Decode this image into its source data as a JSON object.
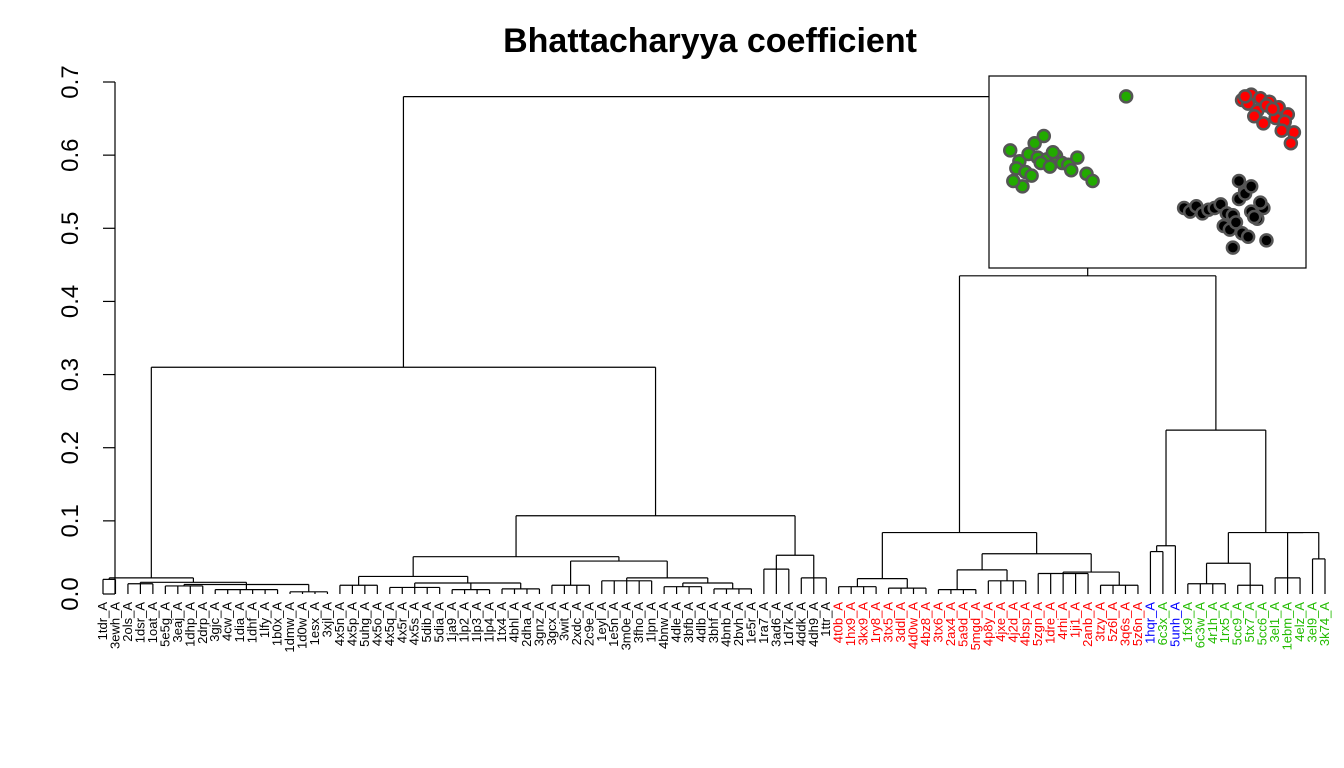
{
  "chart_data": {
    "type": "dendrogram",
    "title": "Bhattacharyya coefficient",
    "xlabel": "",
    "ylabel": "",
    "ylim": [
      0,
      0.7
    ],
    "y_ticks": [
      "0.0",
      "0.1",
      "0.2",
      "0.3",
      "0.4",
      "0.5",
      "0.6",
      "0.7"
    ],
    "y_tick_values": [
      0,
      0.1,
      0.2,
      0.3,
      0.4,
      0.5,
      0.6,
      0.7
    ],
    "grid": false,
    "colors": {
      "group_black": "#000000",
      "group_red": "#ff0000",
      "group_blue": "#0000ff",
      "group_green": "#22bb00",
      "inset_green": "#22aa00",
      "inset_red": "#ff0000",
      "inset_black": "#000000",
      "inset_outline": "#555555"
    },
    "leaves": [
      {
        "label": "1tdr_A",
        "group": "black"
      },
      {
        "label": "3ewh_A",
        "group": "black"
      },
      {
        "label": "2ols_A",
        "group": "black"
      },
      {
        "label": "1dsr_A",
        "group": "black"
      },
      {
        "label": "1oat_A",
        "group": "black"
      },
      {
        "label": "5e5g_A",
        "group": "black"
      },
      {
        "label": "3eaj_A",
        "group": "black"
      },
      {
        "label": "1dhp_A",
        "group": "black"
      },
      {
        "label": "2drp_A",
        "group": "black"
      },
      {
        "label": "3gjc_A",
        "group": "black"
      },
      {
        "label": "4cw_A",
        "group": "black"
      },
      {
        "label": "1dia_A",
        "group": "black"
      },
      {
        "label": "1dhf_A",
        "group": "black"
      },
      {
        "label": "1lfy_A",
        "group": "black"
      },
      {
        "label": "1b0x_A",
        "group": "black"
      },
      {
        "label": "1dmw_A",
        "group": "black"
      },
      {
        "label": "1d0w_A",
        "group": "black"
      },
      {
        "label": "1esx_A",
        "group": "black"
      },
      {
        "label": "3xjl_A",
        "group": "black"
      },
      {
        "label": "4x5n_A",
        "group": "black"
      },
      {
        "label": "4x5p_A",
        "group": "black"
      },
      {
        "label": "5uhg_A",
        "group": "black"
      },
      {
        "label": "4x5o_A",
        "group": "black"
      },
      {
        "label": "4x5q_A",
        "group": "black"
      },
      {
        "label": "4x5r_A",
        "group": "black"
      },
      {
        "label": "4x5s_A",
        "group": "black"
      },
      {
        "label": "5dib_A",
        "group": "black"
      },
      {
        "label": "5dia_A",
        "group": "black"
      },
      {
        "label": "1ja9_A",
        "group": "black"
      },
      {
        "label": "1lp2_A",
        "group": "black"
      },
      {
        "label": "1lp3_A",
        "group": "black"
      },
      {
        "label": "1lp4_A",
        "group": "black"
      },
      {
        "label": "1tx4_A",
        "group": "black"
      },
      {
        "label": "4bhl_A",
        "group": "black"
      },
      {
        "label": "2dha_A",
        "group": "black"
      },
      {
        "label": "3gnz_A",
        "group": "black"
      },
      {
        "label": "3gcx_A",
        "group": "black"
      },
      {
        "label": "3wit_A",
        "group": "black"
      },
      {
        "label": "2xdc_A",
        "group": "black"
      },
      {
        "label": "2c9e_A",
        "group": "black"
      },
      {
        "label": "1eyl_A",
        "group": "black"
      },
      {
        "label": "1e5n_A",
        "group": "black"
      },
      {
        "label": "3m0e_A",
        "group": "black"
      },
      {
        "label": "3fho_A",
        "group": "black"
      },
      {
        "label": "1lpn_A",
        "group": "black"
      },
      {
        "label": "4bnw_A",
        "group": "black"
      },
      {
        "label": "4dle_A",
        "group": "black"
      },
      {
        "label": "3bfb_A",
        "group": "black"
      },
      {
        "label": "4dlb_A",
        "group": "black"
      },
      {
        "label": "3bhf_A",
        "group": "black"
      },
      {
        "label": "4bnb_A",
        "group": "black"
      },
      {
        "label": "2bvh_A",
        "group": "black"
      },
      {
        "label": "1e5r_A",
        "group": "black"
      },
      {
        "label": "1ra7_A",
        "group": "black"
      },
      {
        "label": "3ad6_A",
        "group": "black"
      },
      {
        "label": "1d7k_A",
        "group": "black"
      },
      {
        "label": "4ddk_A",
        "group": "black"
      },
      {
        "label": "4dh9_A",
        "group": "black"
      },
      {
        "label": "1ttr_A",
        "group": "black"
      },
      {
        "label": "4t0b_A",
        "group": "red"
      },
      {
        "label": "1hx9_A",
        "group": "red"
      },
      {
        "label": "3kx9_A",
        "group": "red"
      },
      {
        "label": "1ry8_A",
        "group": "red"
      },
      {
        "label": "3tx5_A",
        "group": "red"
      },
      {
        "label": "3ddl_A",
        "group": "red"
      },
      {
        "label": "4d0w_A",
        "group": "red"
      },
      {
        "label": "4bz8_A",
        "group": "red"
      },
      {
        "label": "3tx6_A",
        "group": "red"
      },
      {
        "label": "2ax4_A",
        "group": "red"
      },
      {
        "label": "5a9d_A",
        "group": "red"
      },
      {
        "label": "5mgd_A",
        "group": "red"
      },
      {
        "label": "4p8y_A",
        "group": "red"
      },
      {
        "label": "4jxe_A",
        "group": "red"
      },
      {
        "label": "4j2d_A",
        "group": "red"
      },
      {
        "label": "4bsp_A",
        "group": "red"
      },
      {
        "label": "5zgn_A",
        "group": "red"
      },
      {
        "label": "1dre_A",
        "group": "red"
      },
      {
        "label": "4rhi_A",
        "group": "red"
      },
      {
        "label": "1ji1_A",
        "group": "red"
      },
      {
        "label": "2anb_A",
        "group": "red"
      },
      {
        "label": "3tzy_A",
        "group": "red"
      },
      {
        "label": "5z6l_A",
        "group": "red"
      },
      {
        "label": "3q6s_A",
        "group": "red"
      },
      {
        "label": "5z6n_A",
        "group": "red"
      },
      {
        "label": "1hqr_A",
        "group": "blue"
      },
      {
        "label": "6c3x_A",
        "group": "green"
      },
      {
        "label": "5unh_A",
        "group": "blue"
      },
      {
        "label": "1fx9_A",
        "group": "green"
      },
      {
        "label": "6c3w_A",
        "group": "green"
      },
      {
        "label": "4r1h_A",
        "group": "green"
      },
      {
        "label": "1rx5_A",
        "group": "green"
      },
      {
        "label": "5cc9_A",
        "group": "green"
      },
      {
        "label": "5tx7_A",
        "group": "green"
      },
      {
        "label": "5cc6_A",
        "group": "green"
      },
      {
        "label": "3el1_A",
        "group": "green"
      },
      {
        "label": "1ebm_A",
        "group": "green"
      },
      {
        "label": "4elz_A",
        "group": "green"
      },
      {
        "label": "3el9_A",
        "group": "green"
      },
      {
        "label": "3k74_A",
        "group": "green"
      }
    ],
    "merges": [
      {
        "a": [
          0,
          1
        ],
        "h": 0.02
      },
      {
        "a": [
          2,
          4
        ],
        "h": 0.014
      },
      {
        "a": [
          5,
          8
        ],
        "h": 0.011
      },
      {
        "a": [
          9,
          14
        ],
        "h": 0.006
      },
      {
        "a": [
          15,
          18
        ],
        "h": 0.003
      },
      {
        "a": [
          5,
          18
        ],
        "h": 0.013
      },
      {
        "a": [
          2,
          18
        ],
        "h": 0.016
      },
      {
        "a": [
          0,
          18
        ],
        "h": 0.022
      },
      {
        "a": [
          19,
          22
        ],
        "h": 0.012
      },
      {
        "a": [
          23,
          27
        ],
        "h": 0.009
      },
      {
        "a": [
          28,
          31
        ],
        "h": 0.006
      },
      {
        "a": [
          32,
          35
        ],
        "h": 0.007
      },
      {
        "a": [
          23,
          35
        ],
        "h": 0.015
      },
      {
        "a": [
          19,
          35
        ],
        "h": 0.024
      },
      {
        "a": [
          36,
          39
        ],
        "h": 0.012
      },
      {
        "a": [
          40,
          44
        ],
        "h": 0.018
      },
      {
        "a": [
          45,
          48
        ],
        "h": 0.01
      },
      {
        "a": [
          49,
          52
        ],
        "h": 0.007
      },
      {
        "a": [
          45,
          52
        ],
        "h": 0.015
      },
      {
        "a": [
          40,
          52
        ],
        "h": 0.022
      },
      {
        "a": [
          36,
          52
        ],
        "h": 0.045
      },
      {
        "a": [
          19,
          52
        ],
        "h": 0.051
      },
      {
        "a": [
          53,
          55
        ],
        "h": 0.034
      },
      {
        "a": [
          56,
          58
        ],
        "h": 0.022
      },
      {
        "a": [
          53,
          58
        ],
        "h": 0.053
      },
      {
        "a": [
          19,
          58
        ],
        "h": 0.107
      },
      {
        "a": [
          0,
          58
        ],
        "h": 0.31
      },
      {
        "a": [
          59,
          62
        ],
        "h": 0.01
      },
      {
        "a": [
          63,
          66
        ],
        "h": 0.008
      },
      {
        "a": [
          59,
          66
        ],
        "h": 0.021
      },
      {
        "a": [
          67,
          70
        ],
        "h": 0.006
      },
      {
        "a": [
          71,
          74
        ],
        "h": 0.018
      },
      {
        "a": [
          67,
          74
        ],
        "h": 0.033
      },
      {
        "a": [
          75,
          79
        ],
        "h": 0.028
      },
      {
        "a": [
          80,
          83
        ],
        "h": 0.012
      },
      {
        "a": [
          75,
          83
        ],
        "h": 0.03
      },
      {
        "a": [
          67,
          83
        ],
        "h": 0.055
      },
      {
        "a": [
          59,
          83
        ],
        "h": 0.084
      },
      {
        "a": [
          84,
          85
        ],
        "h": 0.058
      },
      {
        "a": [
          84,
          86
        ],
        "h": 0.066
      },
      {
        "a": [
          87,
          90
        ],
        "h": 0.014
      },
      {
        "a": [
          91,
          93
        ],
        "h": 0.012
      },
      {
        "a": [
          87,
          93
        ],
        "h": 0.042
      },
      {
        "a": [
          94,
          96
        ],
        "h": 0.022
      },
      {
        "a": [
          97,
          98
        ],
        "h": 0.048
      },
      {
        "a": [
          94,
          98
        ],
        "h": 0.084
      },
      {
        "a": [
          87,
          98
        ],
        "h": 0.084
      },
      {
        "a": [
          84,
          98
        ],
        "h": 0.224
      },
      {
        "a": [
          59,
          98
        ],
        "h": 0.435
      },
      {
        "a": [
          0,
          98
        ],
        "h": 0.68
      }
    ],
    "inset_scatter": {
      "clusters": [
        {
          "color": "green",
          "x": [
            0.05,
            0.08,
            0.11,
            0.14,
            0.17,
            0.2,
            0.07,
            0.1,
            0.13,
            0.16,
            0.19,
            0.22,
            0.09,
            0.06,
            0.12,
            0.24,
            0.27,
            0.3,
            0.25,
            0.32,
            0.15,
            0.18,
            0.43
          ],
          "y": [
            0.62,
            0.56,
            0.6,
            0.58,
            0.57,
            0.59,
            0.52,
            0.5,
            0.66,
            0.7,
            0.61,
            0.55,
            0.42,
            0.45,
            0.48,
            0.54,
            0.58,
            0.49,
            0.51,
            0.45,
            0.55,
            0.53,
            0.92
          ]
        },
        {
          "color": "red",
          "x": [
            0.81,
            0.84,
            0.87,
            0.9,
            0.93,
            0.96,
            0.83,
            0.86,
            0.89,
            0.92,
            0.95,
            0.98,
            0.85,
            0.88,
            0.91,
            0.94,
            0.97,
            0.82
          ],
          "y": [
            0.9,
            0.93,
            0.91,
            0.89,
            0.86,
            0.82,
            0.88,
            0.84,
            0.87,
            0.8,
            0.78,
            0.72,
            0.81,
            0.77,
            0.85,
            0.73,
            0.66,
            0.92
          ]
        },
        {
          "color": "black",
          "x": [
            0.62,
            0.64,
            0.66,
            0.68,
            0.7,
            0.72,
            0.74,
            0.76,
            0.78,
            0.8,
            0.82,
            0.84,
            0.86,
            0.88,
            0.75,
            0.77,
            0.79,
            0.81,
            0.83,
            0.85,
            0.87,
            0.89,
            0.8,
            0.78,
            0.82,
            0.84
          ],
          "y": [
            0.3,
            0.28,
            0.31,
            0.27,
            0.29,
            0.3,
            0.32,
            0.27,
            0.26,
            0.35,
            0.4,
            0.28,
            0.24,
            0.3,
            0.2,
            0.18,
            0.22,
            0.16,
            0.14,
            0.25,
            0.33,
            0.12,
            0.45,
            0.08,
            0.38,
            0.42
          ]
        }
      ]
    }
  }
}
